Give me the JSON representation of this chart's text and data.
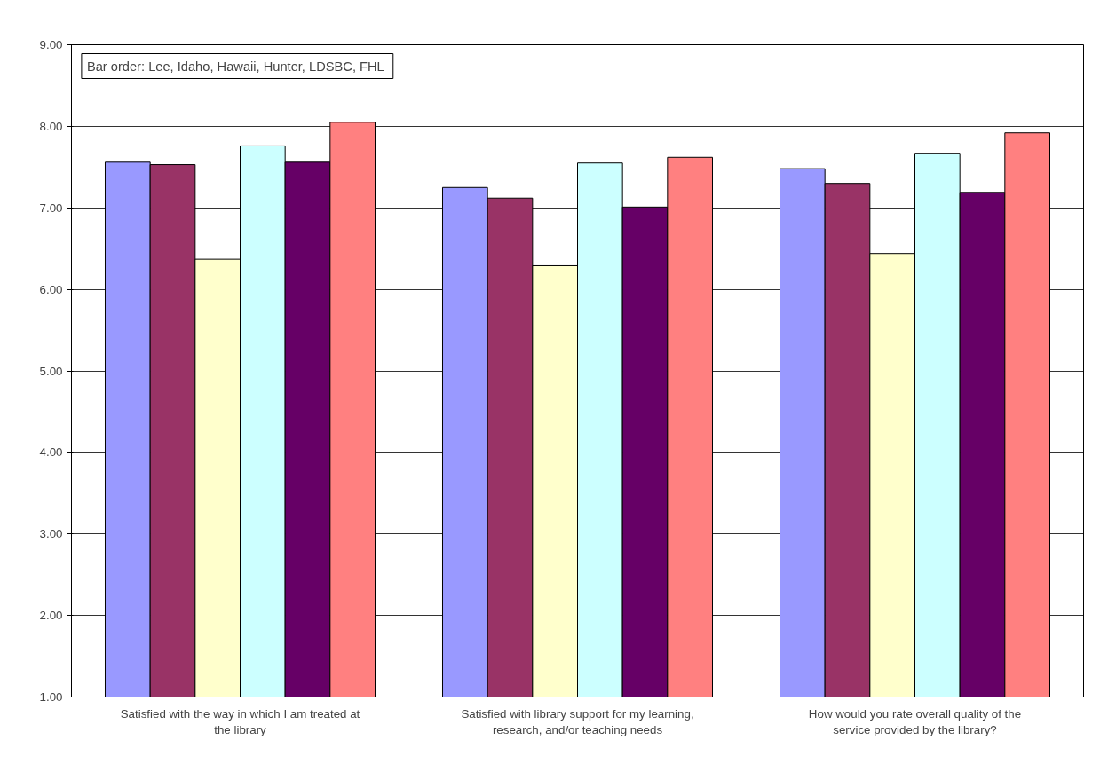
{
  "chart_data": {
    "type": "bar",
    "categories": [
      "Satisfied with the way in which I am treated at the library",
      "Satisfied with library support for my learning, research, and/or teaching needs",
      "How would you rate overall quality of the service provided by the library?"
    ],
    "series": [
      {
        "color": "#9999ff",
        "values": [
          7.56,
          7.25,
          7.48
        ]
      },
      {
        "color": "#993366",
        "values": [
          7.53,
          7.12,
          7.3
        ]
      },
      {
        "color": "#ffffcc",
        "values": [
          6.37,
          6.29,
          6.44
        ]
      },
      {
        "color": "#ccffff",
        "values": [
          7.76,
          7.55,
          7.67
        ]
      },
      {
        "color": "#660066",
        "values": [
          7.56,
          7.01,
          7.19
        ]
      },
      {
        "color": "#ff8080",
        "values": [
          8.05,
          7.62,
          7.92
        ]
      }
    ],
    "ylim": [
      1,
      9
    ],
    "yticks": [
      {
        "value": 1,
        "label": "1.00"
      },
      {
        "value": 2,
        "label": "2.00"
      },
      {
        "value": 3,
        "label": "3.00"
      },
      {
        "value": 4,
        "label": "4.00"
      },
      {
        "value": 5,
        "label": "5.00"
      },
      {
        "value": 6,
        "label": "6.00"
      },
      {
        "value": 7,
        "label": "7.00"
      },
      {
        "value": 8,
        "label": "8.00"
      },
      {
        "value": 9,
        "label": "9.00"
      }
    ],
    "grid": "y",
    "annotations": [
      "Bar order:  Lee, Idaho, Hawaii, Hunter, LDSBC, FHL"
    ]
  }
}
